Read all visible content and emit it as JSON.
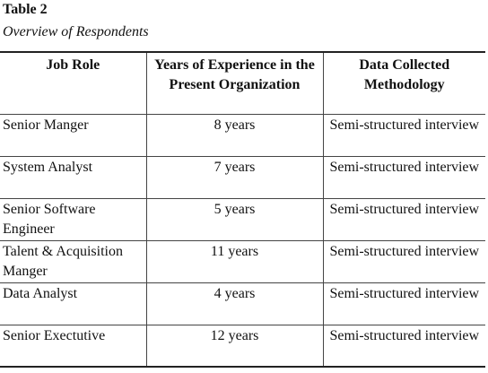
{
  "title": "Table 2",
  "caption": "Overview of Respondents",
  "table": {
    "headers": [
      "Job Role",
      "Years of Experience in the Present Organization",
      "Data Collected Methodology"
    ],
    "rows": [
      [
        "Senior Manger",
        "8 years",
        "Semi-structured interview"
      ],
      [
        "System Analyst",
        "7 years",
        "Semi-structured interview"
      ],
      [
        "Senior Software Engineer",
        "5 years",
        "Semi-structured interview"
      ],
      [
        "Talent & Acquisition Manger",
        "11 years",
        "Semi-structured interview"
      ],
      [
        "Data Analyst",
        "4 years",
        "Semi-structured interview"
      ],
      [
        "Senior Exectutive",
        "12 years",
        "Semi-structured interview"
      ]
    ]
  }
}
